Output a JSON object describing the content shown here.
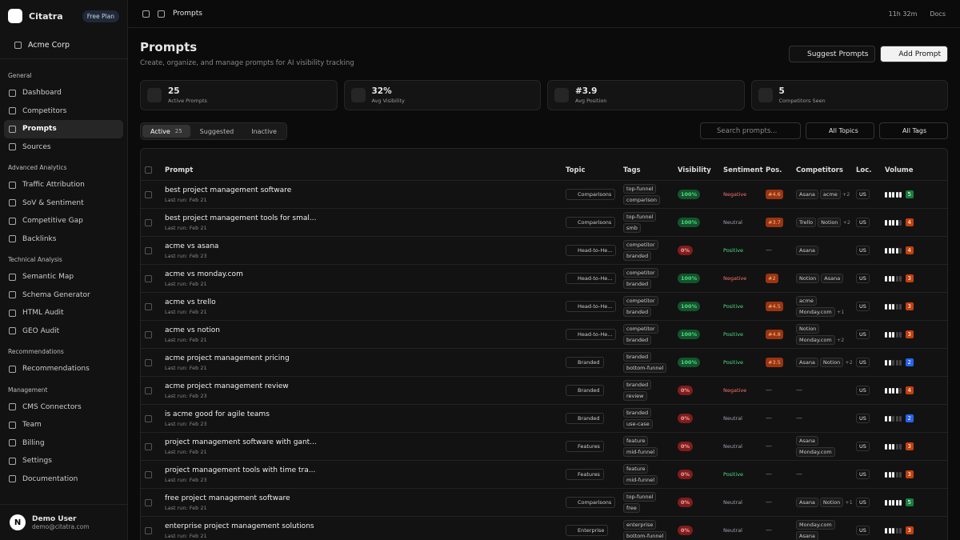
{
  "sidebar": {
    "brand": "Citatra",
    "plan": "Free Plan",
    "org": "Acme Corp",
    "active": "Prompts",
    "sections": [
      {
        "title": "General",
        "items": [
          "Dashboard",
          "Competitors",
          "Prompts",
          "Sources"
        ]
      },
      {
        "title": "Advanced Analytics",
        "items": [
          "Traffic Attribution",
          "SoV & Sentiment",
          "Competitive Gap",
          "Backlinks"
        ]
      },
      {
        "title": "Technical Analysis",
        "items": [
          "Semantic Map",
          "Schema Generator",
          "HTML Audit",
          "GEO Audit"
        ]
      },
      {
        "title": "Recommendations",
        "items": [
          "Recommendations"
        ]
      },
      {
        "title": "Management",
        "items": [
          "CMS Connectors",
          "Team",
          "Billing",
          "Settings",
          "Documentation"
        ]
      }
    ],
    "user": {
      "initial": "N",
      "name": "Demo User",
      "email": "demo@citatra.com"
    }
  },
  "topbar": {
    "breadcrumb": "Prompts",
    "timer": "11h 32m",
    "docs": "Docs"
  },
  "header": {
    "title": "Prompts",
    "subtitle": "Create, organize, and manage prompts for AI visibility tracking",
    "buttons": [
      "Suggest Prompts",
      "Add Prompt"
    ]
  },
  "stats": [
    {
      "value": "25",
      "label": "Active Prompts"
    },
    {
      "value": "32%",
      "label": "Avg Visibility"
    },
    {
      "value": "#3.9",
      "label": "Avg Position"
    },
    {
      "value": "5",
      "label": "Competitors Seen"
    }
  ],
  "tabs": [
    {
      "label": "Active",
      "count": "25"
    },
    {
      "label": "Suggested"
    },
    {
      "label": "Inactive"
    }
  ],
  "search_placeholder": "Search prompts...",
  "filters": [
    "All Topics",
    "All Tags"
  ],
  "columns": [
    "Prompt",
    "Topic",
    "Tags",
    "Visibility",
    "Sentiment",
    "Pos.",
    "Competitors",
    "Loc.",
    "Volume"
  ],
  "sentiment_colors": {
    "Negative": "#f87171",
    "Neutral": "#9ca3af",
    "Positive": "#4ade80"
  },
  "volume_range": [
    0,
    5
  ],
  "volume_colors": {
    "2": "#2563eb",
    "3": "#c2410c",
    "4": "#c2410c",
    "5": "#15803d"
  },
  "rows": [
    {
      "prompt": "best project management software",
      "last_run": "Last run: Feb 21",
      "topic": "Comparisons",
      "tags": [
        "top-funnel",
        "comparison"
      ],
      "visibility": "100%",
      "sentiment": "Negative",
      "position": "#4.6",
      "competitors": [
        "Asana",
        "acme"
      ],
      "more": "+2",
      "loc": "US",
      "volume": 5
    },
    {
      "prompt": "best project management tools for smal...",
      "last_run": "Last run: Feb 21",
      "topic": "Comparisons",
      "tags": [
        "top-funnel",
        "smb"
      ],
      "visibility": "100%",
      "sentiment": "Neutral",
      "position": "#3.7",
      "competitors": [
        "Trello",
        "Notion"
      ],
      "more": "+2",
      "loc": "US",
      "volume": 4
    },
    {
      "prompt": "acme vs asana",
      "last_run": "Last run: Feb 23",
      "topic": "Head-to-He...",
      "tags": [
        "competitor",
        "branded"
      ],
      "visibility": "0%",
      "sentiment": "Positive",
      "position": "—",
      "competitors": [
        "Asana"
      ],
      "loc": "US",
      "volume": 4
    },
    {
      "prompt": "acme vs monday.com",
      "last_run": "Last run: Feb 21",
      "topic": "Head-to-He...",
      "tags": [
        "competitor",
        "branded"
      ],
      "visibility": "100%",
      "sentiment": "Negative",
      "position": "#2",
      "competitors": [
        "Notion",
        "Asana"
      ],
      "loc": "US",
      "volume": 3
    },
    {
      "prompt": "acme vs trello",
      "last_run": "Last run: Feb 21",
      "topic": "Head-to-He...",
      "tags": [
        "competitor",
        "branded"
      ],
      "visibility": "100%",
      "sentiment": "Positive",
      "position": "#4.5",
      "competitors": [
        "acme",
        "Monday.com"
      ],
      "more": "+1",
      "loc": "US",
      "volume": 3
    },
    {
      "prompt": "acme vs notion",
      "last_run": "Last run: Feb 21",
      "topic": "Head-to-He...",
      "tags": [
        "competitor",
        "branded"
      ],
      "visibility": "100%",
      "sentiment": "Positive",
      "position": "#4.8",
      "competitors": [
        "Notion",
        "Monday.com"
      ],
      "more": "+2",
      "loc": "US",
      "volume": 3
    },
    {
      "prompt": "acme project management pricing",
      "last_run": "Last run: Feb 21",
      "topic": "Branded",
      "tags": [
        "branded",
        "bottom-funnel"
      ],
      "visibility": "100%",
      "sentiment": "Positive",
      "position": "#3.5",
      "competitors": [
        "Asana",
        "Notion"
      ],
      "more": "+2",
      "loc": "US",
      "volume": 2
    },
    {
      "prompt": "acme project management review",
      "last_run": "Last run: Feb 23",
      "topic": "Branded",
      "tags": [
        "branded",
        "review"
      ],
      "visibility": "0%",
      "sentiment": "Negative",
      "position": "—",
      "competitors": "—",
      "loc": "US",
      "volume": 4
    },
    {
      "prompt": "is acme good for agile teams",
      "last_run": "Last run: Feb 23",
      "topic": "Branded",
      "tags": [
        "branded",
        "use-case"
      ],
      "visibility": "0%",
      "sentiment": "Neutral",
      "position": "—",
      "competitors": "—",
      "loc": "US",
      "volume": 2
    },
    {
      "prompt": "project management software with gant...",
      "last_run": "Last run: Feb 21",
      "topic": "Features",
      "tags": [
        "feature",
        "mid-funnel"
      ],
      "visibility": "0%",
      "sentiment": "Neutral",
      "position": "—",
      "competitors": [
        "Asana",
        "Monday.com"
      ],
      "loc": "US",
      "volume": 3
    },
    {
      "prompt": "project management tools with time tra...",
      "last_run": "Last run: Feb 23",
      "topic": "Features",
      "tags": [
        "feature",
        "mid-funnel"
      ],
      "visibility": "0%",
      "sentiment": "Positive",
      "position": "—",
      "competitors": "—",
      "loc": "US",
      "volume": 3
    },
    {
      "prompt": "free project management software",
      "last_run": "Last run: Feb 21",
      "topic": "Comparisons",
      "tags": [
        "top-funnel",
        "free"
      ],
      "visibility": "0%",
      "sentiment": "Neutral",
      "position": "—",
      "competitors": [
        "Asana",
        "Notion"
      ],
      "more": "+1",
      "loc": "US",
      "volume": 5
    },
    {
      "prompt": "enterprise project management solutions",
      "last_run": "Last run: Feb 21",
      "topic": "Enterprise",
      "tags": [
        "enterprise",
        "bottom-funnel"
      ],
      "visibility": "0%",
      "sentiment": "Neutral",
      "position": "—",
      "competitors": [
        "Monday.com",
        "Asana"
      ],
      "loc": "US",
      "volume": 3
    }
  ]
}
